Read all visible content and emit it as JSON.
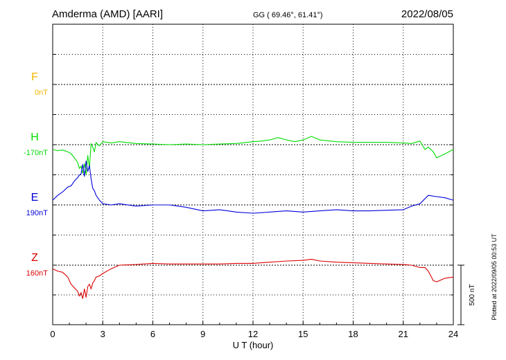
{
  "header": {
    "station": "Amderma (AMD)  [AARI]",
    "coords": "GG ( 69.46°,  61.41°)",
    "date": "2022/08/05"
  },
  "footer_note": "Plotted at 2022/09/05 00:53 UT",
  "scale_bar_label": "500 nT",
  "chart_data": {
    "type": "line",
    "xlabel": "U T (hour)",
    "xlim": [
      0,
      24
    ],
    "x_ticks": [
      "0",
      "3",
      "6",
      "9",
      "12",
      "15",
      "18",
      "21",
      "24"
    ],
    "grid": true,
    "scale_nT": 500,
    "series": [
      {
        "name": "F",
        "baseline_label": "0nT",
        "color": "#f2b600",
        "x": [],
        "y": []
      },
      {
        "name": "H",
        "baseline_label": "-170nT",
        "color": "#00dd00",
        "x": [
          0,
          0.3,
          0.6,
          0.9,
          1.1,
          1.3,
          1.5,
          1.6,
          1.7,
          1.8,
          1.9,
          2.0,
          2.1,
          2.2,
          2.3,
          2.4,
          2.5,
          2.6,
          2.8,
          3.0,
          3.5,
          4.0,
          5.0,
          6.0,
          7.0,
          8.0,
          9.0,
          10.0,
          11.0,
          12.0,
          12.5,
          13.0,
          13.5,
          14.0,
          14.5,
          15.0,
          15.5,
          16.0,
          17.0,
          18.0,
          19.0,
          20.0,
          21.0,
          21.5,
          22.0,
          22.3,
          22.5,
          22.8,
          23.0,
          23.3,
          23.6,
          24.0
        ],
        "y": [
          -40,
          -50,
          -45,
          -60,
          -75,
          -110,
          -150,
          -200,
          -180,
          -240,
          -160,
          -250,
          -90,
          -200,
          10,
          -20,
          -60,
          20,
          -10,
          25,
          15,
          25,
          10,
          5,
          0,
          5,
          0,
          5,
          10,
          25,
          30,
          40,
          60,
          40,
          25,
          40,
          70,
          40,
          25,
          20,
          20,
          20,
          15,
          10,
          30,
          -40,
          -20,
          -60,
          -110,
          -90,
          -70,
          -40
        ]
      },
      {
        "name": "E",
        "baseline_label": "190nT",
        "color": "#0000dd",
        "x": [
          0,
          0.3,
          0.6,
          0.9,
          1.1,
          1.3,
          1.5,
          1.6,
          1.7,
          1.8,
          1.9,
          2.0,
          2.1,
          2.2,
          2.3,
          2.4,
          2.5,
          2.6,
          2.8,
          3.0,
          3.5,
          4.0,
          5.0,
          6.0,
          7.0,
          8.0,
          9.0,
          10.0,
          11.0,
          12.0,
          13.0,
          14.0,
          15.0,
          16.0,
          17.0,
          18.0,
          19.0,
          20.0,
          21.0,
          21.5,
          22.0,
          22.5,
          23.0,
          23.5,
          24.0
        ],
        "y": [
          40,
          80,
          110,
          150,
          160,
          200,
          230,
          250,
          260,
          340,
          240,
          370,
          280,
          330,
          220,
          140,
          120,
          80,
          40,
          10,
          0,
          10,
          -10,
          0,
          0,
          -20,
          -50,
          -40,
          -60,
          -70,
          -60,
          -50,
          -60,
          -50,
          -40,
          -50,
          -50,
          -45,
          -40,
          -10,
          10,
          80,
          70,
          60,
          40
        ]
      },
      {
        "name": "Z",
        "baseline_label": "160nT",
        "color": "#dd0000",
        "x": [
          0,
          0.3,
          0.6,
          0.9,
          1.1,
          1.3,
          1.5,
          1.6,
          1.7,
          1.8,
          1.9,
          2.0,
          2.1,
          2.2,
          2.3,
          2.4,
          2.5,
          2.6,
          2.8,
          3.0,
          3.5,
          4.0,
          5.0,
          6.0,
          7.0,
          8.0,
          9.0,
          10.0,
          11.0,
          12.0,
          13.0,
          14.0,
          15.0,
          15.5,
          16.0,
          17.0,
          18.0,
          19.0,
          20.0,
          21.0,
          21.5,
          22.0,
          22.3,
          22.5,
          22.8,
          23.0,
          23.5,
          24.0
        ],
        "y": [
          -30,
          -50,
          -60,
          -100,
          -160,
          -190,
          -220,
          -260,
          -230,
          -280,
          -200,
          -270,
          -180,
          -160,
          -200,
          -150,
          -130,
          -100,
          -90,
          -70,
          -30,
          0,
          5,
          15,
          10,
          10,
          10,
          10,
          15,
          15,
          25,
          35,
          40,
          50,
          35,
          25,
          20,
          15,
          10,
          5,
          0,
          -20,
          -20,
          -50,
          -130,
          -140,
          -110,
          -100
        ]
      }
    ]
  }
}
